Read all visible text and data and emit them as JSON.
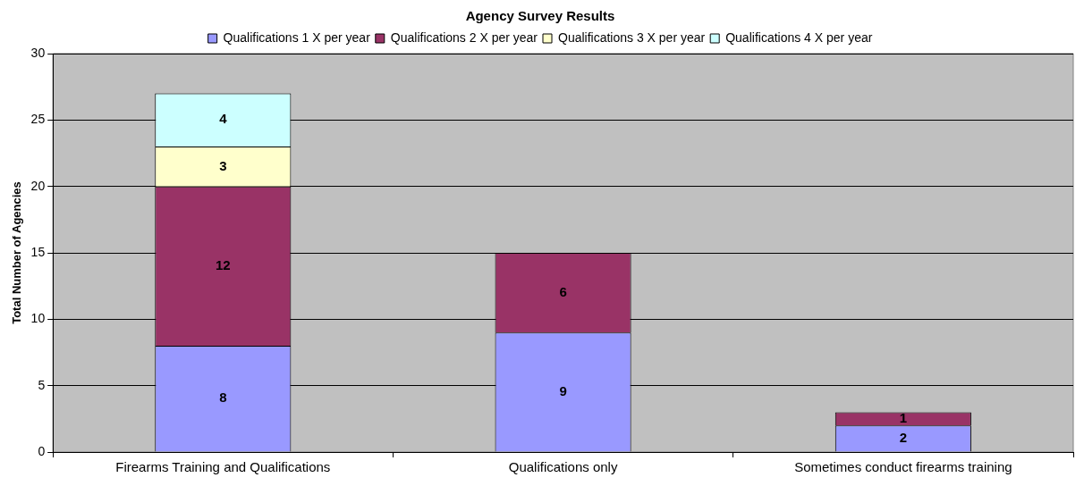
{
  "chart_data": {
    "type": "bar",
    "title": "Agency Survey Results",
    "ylabel": "Total Number of Agencies",
    "categories": [
      "Firearms Training and Qualifications",
      "Qualifications only",
      "Sometimes conduct firearms training"
    ],
    "stacked": true,
    "series": [
      {
        "name": "Qualifications 1 X per year",
        "color": "#9999ff",
        "values": [
          8,
          9,
          2
        ]
      },
      {
        "name": "Qualifications 2 X per year",
        "color": "#993366",
        "values": [
          12,
          6,
          1
        ]
      },
      {
        "name": "Qualifications 3 X per year",
        "color": "#ffffcc",
        "values": [
          3,
          null,
          null
        ]
      },
      {
        "name": "Qualifications 4 X per year",
        "color": "#ccffff",
        "values": [
          4,
          null,
          null
        ]
      }
    ],
    "ylim": [
      0,
      30
    ],
    "yticks": [
      0,
      5,
      10,
      15,
      20,
      25,
      30
    ],
    "grid": "y",
    "legend": "top",
    "data_labels": true
  }
}
